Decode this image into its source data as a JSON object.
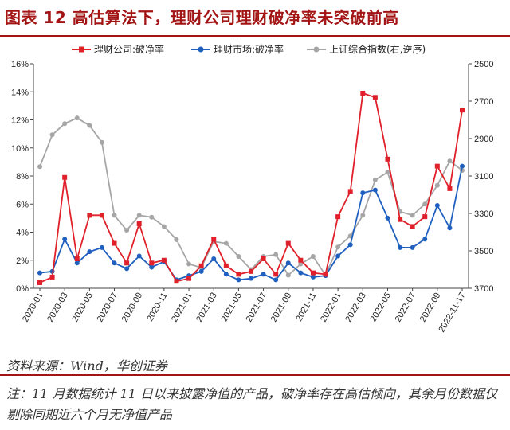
{
  "header": {
    "title": "图表 12  高估算法下，理财公司理财破净率未突破前高"
  },
  "source": "资料来源：Wind，华创证券",
  "note": "注：11 月数据统计 11 日以来披露净值的产品，破净率存在高估倾向，其余月份数据仅剔除同期近六个月无净值产品",
  "chart_data": {
    "type": "line",
    "x": [
      "2020-01",
      "2020-02",
      "2020-03",
      "2020-04",
      "2020-05",
      "2020-06",
      "2020-07",
      "2020-08",
      "2020-09",
      "2020-10",
      "2020-11",
      "2020-12",
      "2021-01",
      "2021-02",
      "2021-03",
      "2021-04",
      "2021-05",
      "2021-06",
      "2021-07",
      "2021-08",
      "2021-09",
      "2021-10",
      "2021-11",
      "2021-12",
      "2022-01",
      "2022-02",
      "2022-03",
      "2022-04",
      "2022-05",
      "2022-06",
      "2022-07",
      "2022-08",
      "2022-09",
      "2022-10",
      "2022-11-17"
    ],
    "x_tick_labels": [
      "2020-01",
      "2020-03",
      "2020-05",
      "2020-07",
      "2020-09",
      "2020-11",
      "2021-01",
      "2021-03",
      "2021-05",
      "2021-07",
      "2021-09",
      "2021-11",
      "2022-01",
      "2022-03",
      "2022-05",
      "2022-07",
      "2022-09",
      "2022-11-17"
    ],
    "y_left": {
      "min": 0,
      "max": 16,
      "ticks": [
        "0%",
        "2%",
        "4%",
        "6%",
        "8%",
        "10%",
        "12%",
        "14%",
        "16%"
      ]
    },
    "y_right": {
      "min": 2500,
      "max": 3700,
      "inverted": true,
      "ticks": [
        "2500",
        "2700",
        "2900",
        "3100",
        "3300",
        "3500",
        "3700"
      ]
    },
    "series": [
      {
        "name": "理财公司:破净率",
        "color": "#e0202a",
        "marker": "square",
        "axis": "left",
        "values": [
          0.4,
          0.8,
          7.9,
          2.1,
          5.2,
          5.2,
          3.2,
          1.8,
          4.6,
          1.8,
          2.0,
          0.5,
          0.7,
          1.6,
          3.5,
          1.6,
          1.0,
          1.2,
          2.1,
          1.0,
          3.2,
          2.0,
          1.1,
          1.0,
          5.1,
          6.9,
          13.9,
          13.6,
          9.2,
          4.9,
          4.4,
          5.1,
          8.7,
          7.1,
          12.7
        ]
      },
      {
        "name": "理财市场:破净率",
        "color": "#1f5fbf",
        "marker": "circle",
        "axis": "left",
        "values": [
          1.1,
          1.2,
          3.5,
          1.8,
          2.6,
          2.9,
          1.8,
          1.4,
          2.3,
          1.5,
          1.9,
          0.6,
          0.9,
          1.2,
          2.1,
          1.0,
          0.6,
          0.7,
          1.0,
          0.6,
          1.8,
          1.1,
          0.8,
          0.9,
          2.3,
          3.1,
          6.8,
          7.0,
          5.0,
          2.9,
          2.9,
          3.5,
          5.9,
          4.3,
          8.7
        ]
      },
      {
        "name": "上证综合指数(右,逆序)",
        "color": "#a6a6a6",
        "marker": "circle",
        "axis": "right",
        "values": [
          3050,
          2880,
          2820,
          2790,
          2830,
          2920,
          3310,
          3390,
          3310,
          3320,
          3370,
          3440,
          3570,
          3590,
          3450,
          3460,
          3530,
          3600,
          3530,
          3520,
          3630,
          3570,
          3530,
          3630,
          3480,
          3420,
          3310,
          3120,
          3080,
          3290,
          3310,
          3250,
          3150,
          3020,
          3070
        ]
      }
    ]
  }
}
